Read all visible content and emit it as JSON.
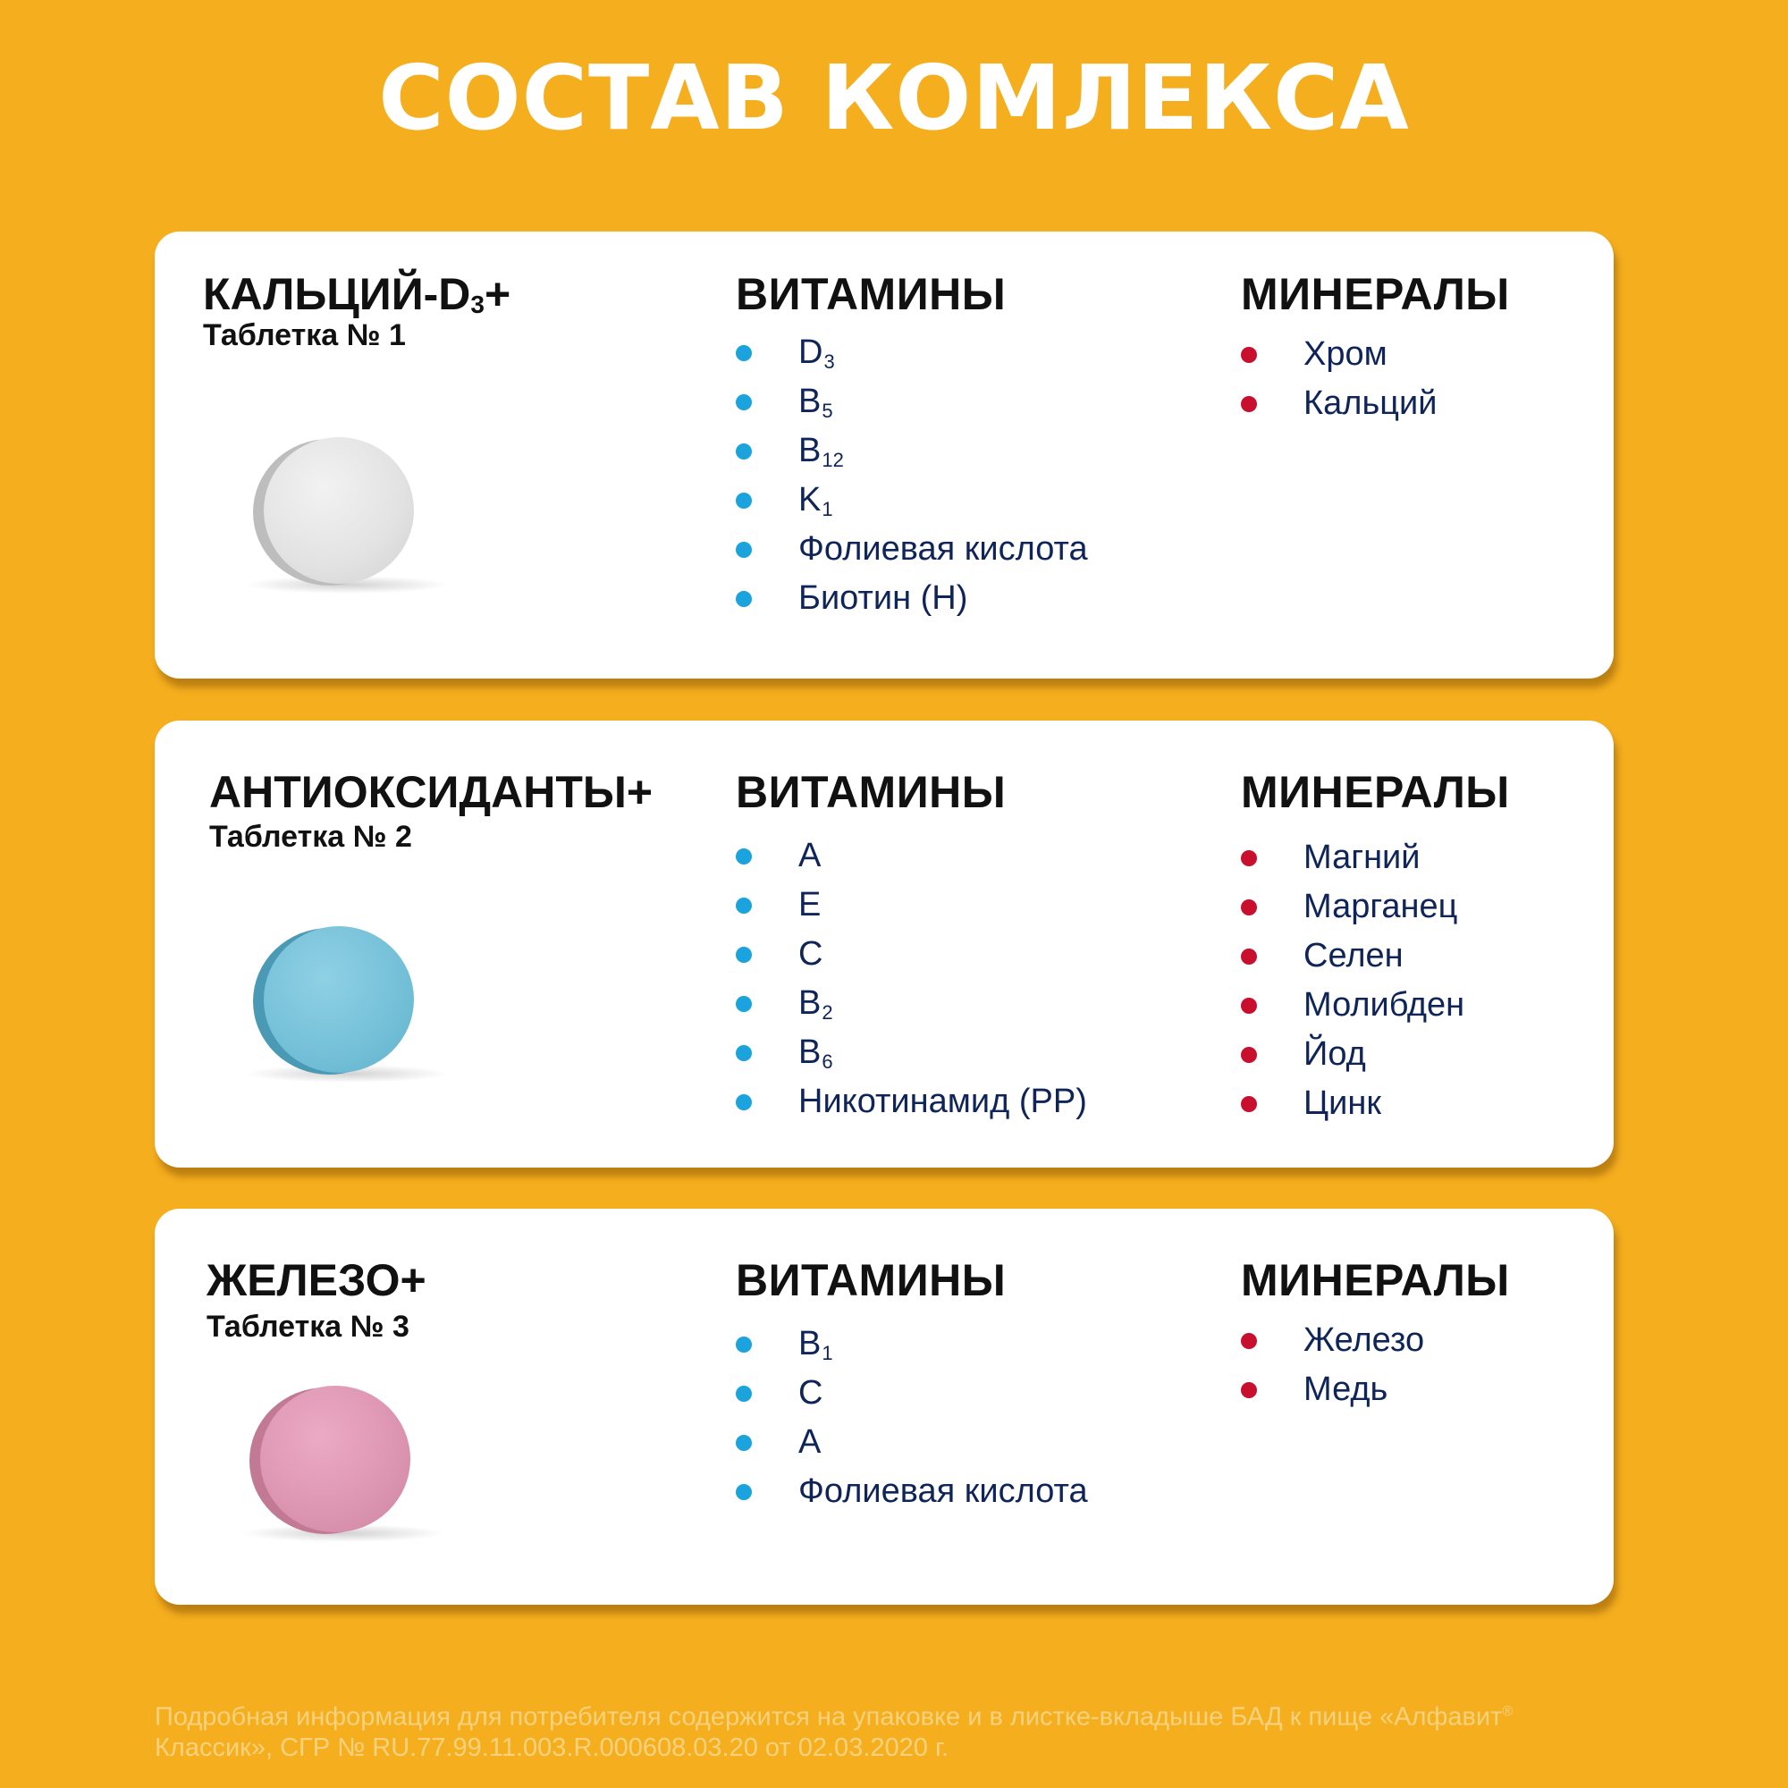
{
  "title": "СОСТАВ КОМЛЕКСА",
  "cards": [
    {
      "name_main": "КАЛЬЦИЙ-D",
      "name_sub": "3",
      "name_suffix": "+",
      "tablet": "Таблетка № 1",
      "pill_color": "#E2E2E2",
      "vitamins_title": "ВИТАМИНЫ",
      "vitamins": [
        {
          "main": "D",
          "sub": "3"
        },
        {
          "main": "B",
          "sub": "5"
        },
        {
          "main": "B",
          "sub": "12"
        },
        {
          "main": "K",
          "sub": "1"
        },
        {
          "main": "Фолиевая кислота",
          "sub": ""
        },
        {
          "main": "Биотин (Н)",
          "sub": ""
        }
      ],
      "minerals_title": "МИНЕРАЛЫ",
      "minerals": [
        "Хром",
        "Кальций"
      ]
    },
    {
      "name_main": "АНТИОКСИДАНТЫ+",
      "name_sub": "",
      "name_suffix": "",
      "tablet": "Таблетка № 2",
      "pill_color": "#74C0D8",
      "vitamins_title": "ВИТАМИНЫ",
      "vitamins": [
        {
          "main": "A",
          "sub": ""
        },
        {
          "main": "E",
          "sub": ""
        },
        {
          "main": "C",
          "sub": ""
        },
        {
          "main": "B",
          "sub": "2"
        },
        {
          "main": "B",
          "sub": "6"
        },
        {
          "main": "Никотинамид (РР)",
          "sub": ""
        }
      ],
      "minerals_title": "МИНЕРАЛЫ",
      "minerals": [
        "Магний",
        "Марганец",
        "Селен",
        "Молибден",
        "Йод",
        "Цинк"
      ]
    },
    {
      "name_main": "ЖЕЛЕЗО+",
      "name_sub": "",
      "name_suffix": "",
      "tablet": "Таблетка № 3",
      "pill_color": "#DC95B1",
      "vitamins_title": "ВИТАМИНЫ",
      "vitamins": [
        {
          "main": "B",
          "sub": "1"
        },
        {
          "main": "C",
          "sub": ""
        },
        {
          "main": "A",
          "sub": ""
        },
        {
          "main": "Фолиевая кислота",
          "sub": ""
        }
      ],
      "minerals_title": "МИНЕРАЛЫ",
      "minerals": [
        "Железо",
        "Медь"
      ]
    }
  ],
  "footer": {
    "line1": "Подробная информация для потребителя содержится на упаковке и в листке-вкладыше БАД к пище «Алфавит",
    "registered_mark": "®",
    "line2": "Классик», СГР №  RU.77.99.11.003.R.000608.03.20 от 02.03.2020 г."
  },
  "colors": {
    "background": "#F5AE1E",
    "vitamin_bullet": "#1BA3DE",
    "mineral_bullet": "#C8102E",
    "list_text": "#0F2458"
  }
}
